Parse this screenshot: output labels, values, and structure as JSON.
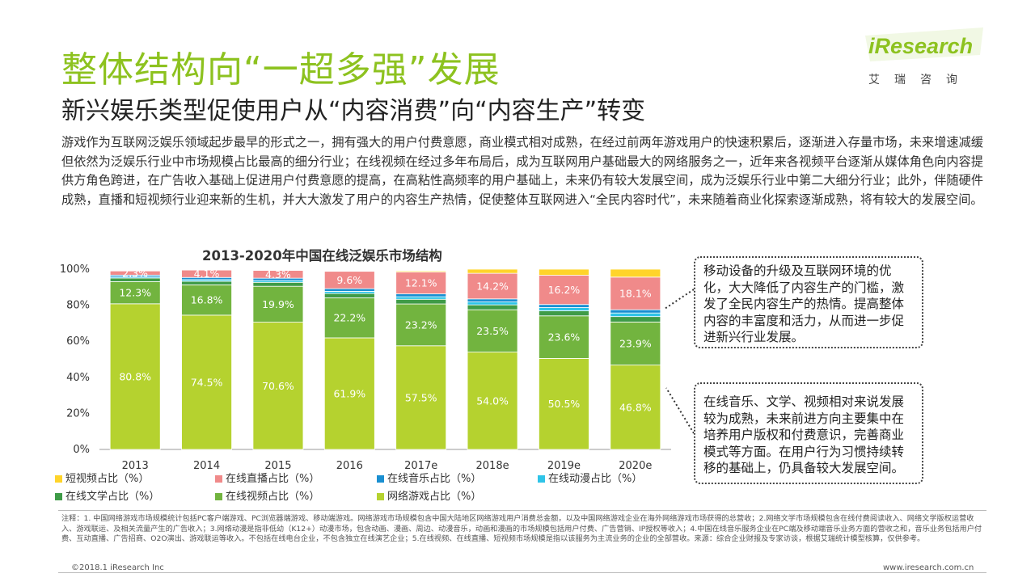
{
  "header": {
    "title": "整体结构向“一超多强”发展",
    "subtitle": "新兴娱乐类型促使用户从“内容消费”向“内容生产”转变"
  },
  "paragraph": "游戏作为互联网泛娱乐领域起步最早的形式之一，拥有强大的用户付费意愿，商业模式相对成熟，在经过前两年游戏用户的快速积累后，逐渐进入存量市场，未来增速减缓但依然为泛娱乐行业中市场规模占比最高的细分行业；在线视频在经过多年布局后，成为互联网用户基础最大的网络服务之一，近年来各视频平台逐渐从媒体角色向内容提供方角色跨进，在广告收入基础上促进用户付费意愿的提高，在高粘性高频率的用户基础上，未来仍有较大发展空间，成为泛娱乐行业中第二大细分行业；此外，伴随硬件成熟，直播和短视频行业迎来新的生机，并大大激发了用户的内容生产热情，促使整体互联网进入“全民内容时代”，未来随着商业化探索逐渐成熟，将有较大的发展空间。",
  "logo": {
    "word": "iResearch",
    "cn": "艾瑞咨询"
  },
  "callouts": [
    "移动设备的升级及互联网环境的优化，大大降低了内容生产的门槛，激发了全民内容生产的热情。提高整体内容的丰富度和活力，从而进一步促进新兴行业发展。",
    "在线音乐、文学、视频相对来说发展较为成熟，未来前进方向主要集中在培养用户版权和付费意识，完善商业模式等方面。在用户行为习惯持续转移的基础上，仍具备较大发展空间。"
  ],
  "chart_data": {
    "type": "bar",
    "stacked": true,
    "title": "2013-2020年中国在线泛娱乐市场结构",
    "categories": [
      "2013",
      "2014",
      "2015",
      "2016",
      "2017e",
      "2018e",
      "2019e",
      "2020e"
    ],
    "yticks": [
      "0%",
      "20%",
      "40%",
      "60%",
      "80%",
      "100%"
    ],
    "ylim": [
      0,
      100
    ],
    "series": [
      {
        "name": "网络游戏占比（%）",
        "color": "#b5d22f",
        "values": [
          80.8,
          74.5,
          70.6,
          61.9,
          57.5,
          54.0,
          50.5,
          46.8
        ],
        "labels": [
          "80.8%",
          "74.5%",
          "70.6%",
          "61.9%",
          "57.5%",
          "54.0%",
          "50.5%",
          "46.8%"
        ]
      },
      {
        "name": "在线视频占比（%）",
        "color": "#72b43f",
        "values": [
          12.3,
          16.8,
          19.9,
          22.2,
          23.2,
          23.5,
          23.6,
          23.9
        ],
        "labels": [
          "12.3%",
          "16.8%",
          "19.9%",
          "22.2%",
          "23.2%",
          "23.5%",
          "23.6%",
          "23.9%"
        ]
      },
      {
        "name": "在线文学占比（%）",
        "color": "#3e9b47",
        "values": [
          2.0,
          2.0,
          2.2,
          2.4,
          2.6,
          2.7,
          2.8,
          3.0
        ],
        "labels": []
      },
      {
        "name": "在线动漫占比（%）",
        "color": "#2fc4e8",
        "values": [
          0.6,
          0.9,
          1.0,
          1.2,
          1.4,
          1.6,
          1.8,
          2.0
        ],
        "labels": []
      },
      {
        "name": "在线音乐占比（%）",
        "color": "#1a8fd1",
        "values": [
          1.0,
          1.2,
          1.3,
          1.5,
          1.6,
          1.7,
          1.7,
          1.8
        ],
        "labels": []
      },
      {
        "name": "在线直播占比（%）",
        "color": "#f08a8a",
        "values": [
          2.3,
          4.1,
          4.3,
          9.6,
          12.1,
          14.2,
          16.2,
          18.1
        ],
        "labels": [
          "2.3%",
          "4.1%",
          "4.3%",
          "9.6%",
          "12.1%",
          "14.2%",
          "16.2%",
          "18.1%"
        ]
      },
      {
        "name": "短视频占比（%）",
        "color": "#ffd42a",
        "values": [
          0,
          0,
          0,
          0,
          0.6,
          2.3,
          3.4,
          4.4
        ],
        "labels": []
      }
    ],
    "legend_order": [
      "短视频占比（%）",
      "在线直播占比（%）",
      "在线音乐占比（%）",
      "在线动漫占比（%）",
      "在线文学占比（%）",
      "在线视频占比（%）",
      "网络游戏占比（%）"
    ],
    "grid": false,
    "legend_position": "bottom"
  },
  "footnote": "注释：1. 中国网络游戏市场规模统计包括PC客户端游戏、PC浏览器端游戏、移动端游戏。网络游戏市场规模包含中国大陆地区网络游戏用户消费总金额，以及中国网络游戏企业在海外网络游戏市场获得的总营收；2.网络文学市场规模包含在线付费阅读收入、网络文学版权运营收入、游戏联运、及相关流量产生的广告收入；3.网络动漫是指非低幼（K12+）动漫市场，包含动画、漫画、周边、动漫音乐，动画和漫画的市场规模包括用户付费、广告营销、IP授权等收入；4.中国在线音乐服务企业在PC端及移动端音乐业务方面的营收之和，音乐业务包括用户付费、互动直播、广告招商、O2O演出、游戏联运等收入。不包括在线电台企业，不包含独立在线演艺企业；5.在线视频、在线直播、短视频市场规模是指以该服务为主流业务的企业的全部营收。来源：综合企业财报及专家访谈，根据艾瑞统计模型核算，仅供参考。",
  "footer": {
    "copyright": "©2018.1 iResearch Inc",
    "url": "www.iresearch.com.cn"
  }
}
